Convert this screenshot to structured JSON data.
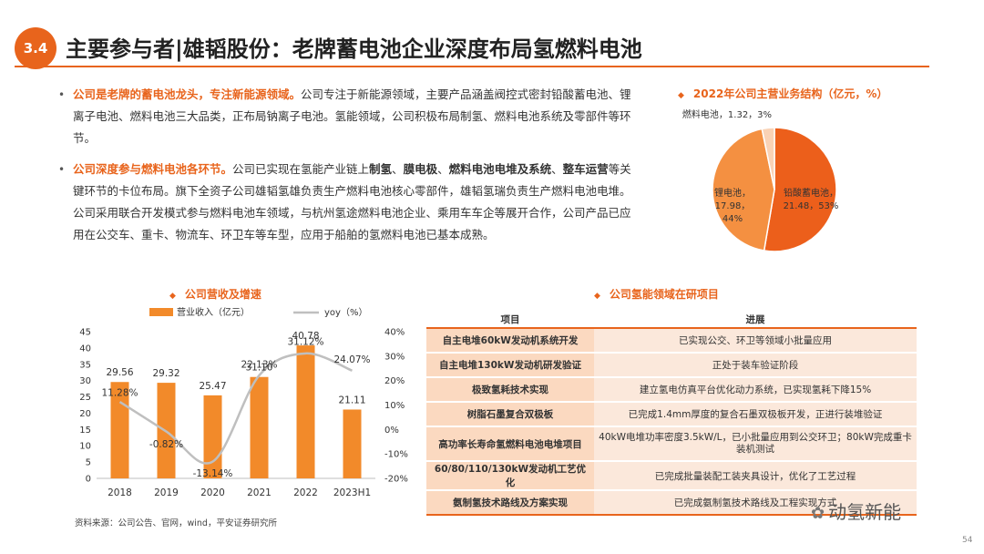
{
  "header": {
    "section_number": "3.4",
    "title": "主要参与者|雄韬股份：老牌蓄电池企业深度布局氢燃料电池"
  },
  "bullets": [
    {
      "highlight": "公司是老牌的蓄电池龙头，专注新能源领域。",
      "text": "公司专注于新能源领域，主要产品涵盖阀控式密封铅酸蓄电池、锂离子电池、燃料电池三大品类，正布局钠离子电池。氢能领域，公司积极布局制氢、燃料电池系统及零部件等环节。"
    },
    {
      "highlight": "公司深度参与燃料电池各环节。",
      "p1": "公司已实现在氢能产业链上",
      "b1": "制氢",
      "s1": "、",
      "b2": "膜电极",
      "s2": "、",
      "b3": "燃料电池电堆及系统",
      "s3": "、",
      "b4": "整车运营",
      "p2": "等关键环节的卡位布局。旗下全资子公司雄韬氢雄负责生产燃料电池核心零部件，雄韬氢瑞负责生产燃料电池电堆。公司采用联合开发模式参与燃料电池车领域，与杭州氢途燃料电池企业、乘用车车企等展开合作，公司产品已应用在公交车、重卡、物流车、环卫车等车型，应用于船舶的氢燃料电池已基本成熟。"
    }
  ],
  "pie_section": {
    "title": "2022年公司主营业务结构（亿元，%）"
  },
  "bar_section": {
    "title": "公司营收及增速"
  },
  "table_section": {
    "title": "公司氢能领域在研项目",
    "headers": [
      "项目",
      "进展"
    ],
    "rows": [
      [
        "自主电堆60kW发动机系统开发",
        "已实现公交、环卫等领域小批量应用"
      ],
      [
        "自主电堆130kW发动机研发验证",
        "正处于装车验证阶段"
      ],
      [
        "极致氢耗技术实现",
        "建立氢电仿真平台优化动力系统，已实现氢耗下降15%"
      ],
      [
        "树脂石墨复合双极板",
        "已完成1.4mm厚度的复合石墨双极板开发，正进行装堆验证"
      ],
      [
        "高功率长寿命氢燃料电池电堆项目",
        "40kW电堆功率密度3.5kW/L，已小批量应用到公交环卫；80kW完成重卡装机测试"
      ],
      [
        "60/80/110/130kW发动机工艺优化",
        "已完成批量装配工装夹具设计，优化了工艺过程"
      ],
      [
        "氨制氢技术路线及方案实现",
        "已完成氨制氢技术路线及工程实现方式"
      ]
    ]
  },
  "footer": {
    "source": "资料来源：公司公告、官网，wind，平安证券研究所",
    "page_number": "54",
    "watermark": "动氢新能"
  },
  "colors": {
    "accent": "#e8641c",
    "bar": "#f28a2a",
    "line": "#bfbfbf",
    "pie_light": "#f4a672",
    "pie_pale": "#f8cfb2"
  },
  "chart_data": [
    {
      "type": "pie",
      "title": "2022年公司主营业务结构（亿元，%）",
      "slices": [
        {
          "label": "铅酸蓄电池",
          "value": 21.48,
          "percent": "53%"
        },
        {
          "label": "锂电池",
          "value": 17.98,
          "percent": "44%"
        },
        {
          "label": "燃料电池",
          "value": 1.32,
          "percent": "3%"
        }
      ]
    },
    {
      "type": "bar+line",
      "title": "公司营收及增速",
      "categories": [
        "2018",
        "2019",
        "2020",
        "2021",
        "2022",
        "2023H1"
      ],
      "series": [
        {
          "name": "营业收入（亿元）",
          "type": "bar",
          "axis": "left",
          "values": [
            29.56,
            29.32,
            25.47,
            31.1,
            40.78,
            21.11
          ],
          "labels": [
            "29.56",
            "29.32",
            "25.47",
            "31.10",
            "40.78",
            "21.11"
          ]
        },
        {
          "name": "yoy（%）",
          "type": "line",
          "axis": "right",
          "values": [
            11.28,
            -0.82,
            -13.14,
            22.13,
            31.12,
            24.07
          ],
          "labels": [
            "11.28%",
            "-0.82%",
            "-13.14%",
            "22.13%",
            "31.12%",
            "24.07%"
          ]
        }
      ],
      "y_left": {
        "range": [
          0,
          45
        ],
        "ticks": [
          "0",
          "5",
          "10",
          "15",
          "20",
          "25",
          "30",
          "35",
          "40",
          "45"
        ]
      },
      "y_right": {
        "range": [
          -20,
          40
        ],
        "ticks": [
          "-20%",
          "-10%",
          "0%",
          "10%",
          "20%",
          "30%",
          "40%"
        ]
      },
      "legend": "top"
    }
  ]
}
